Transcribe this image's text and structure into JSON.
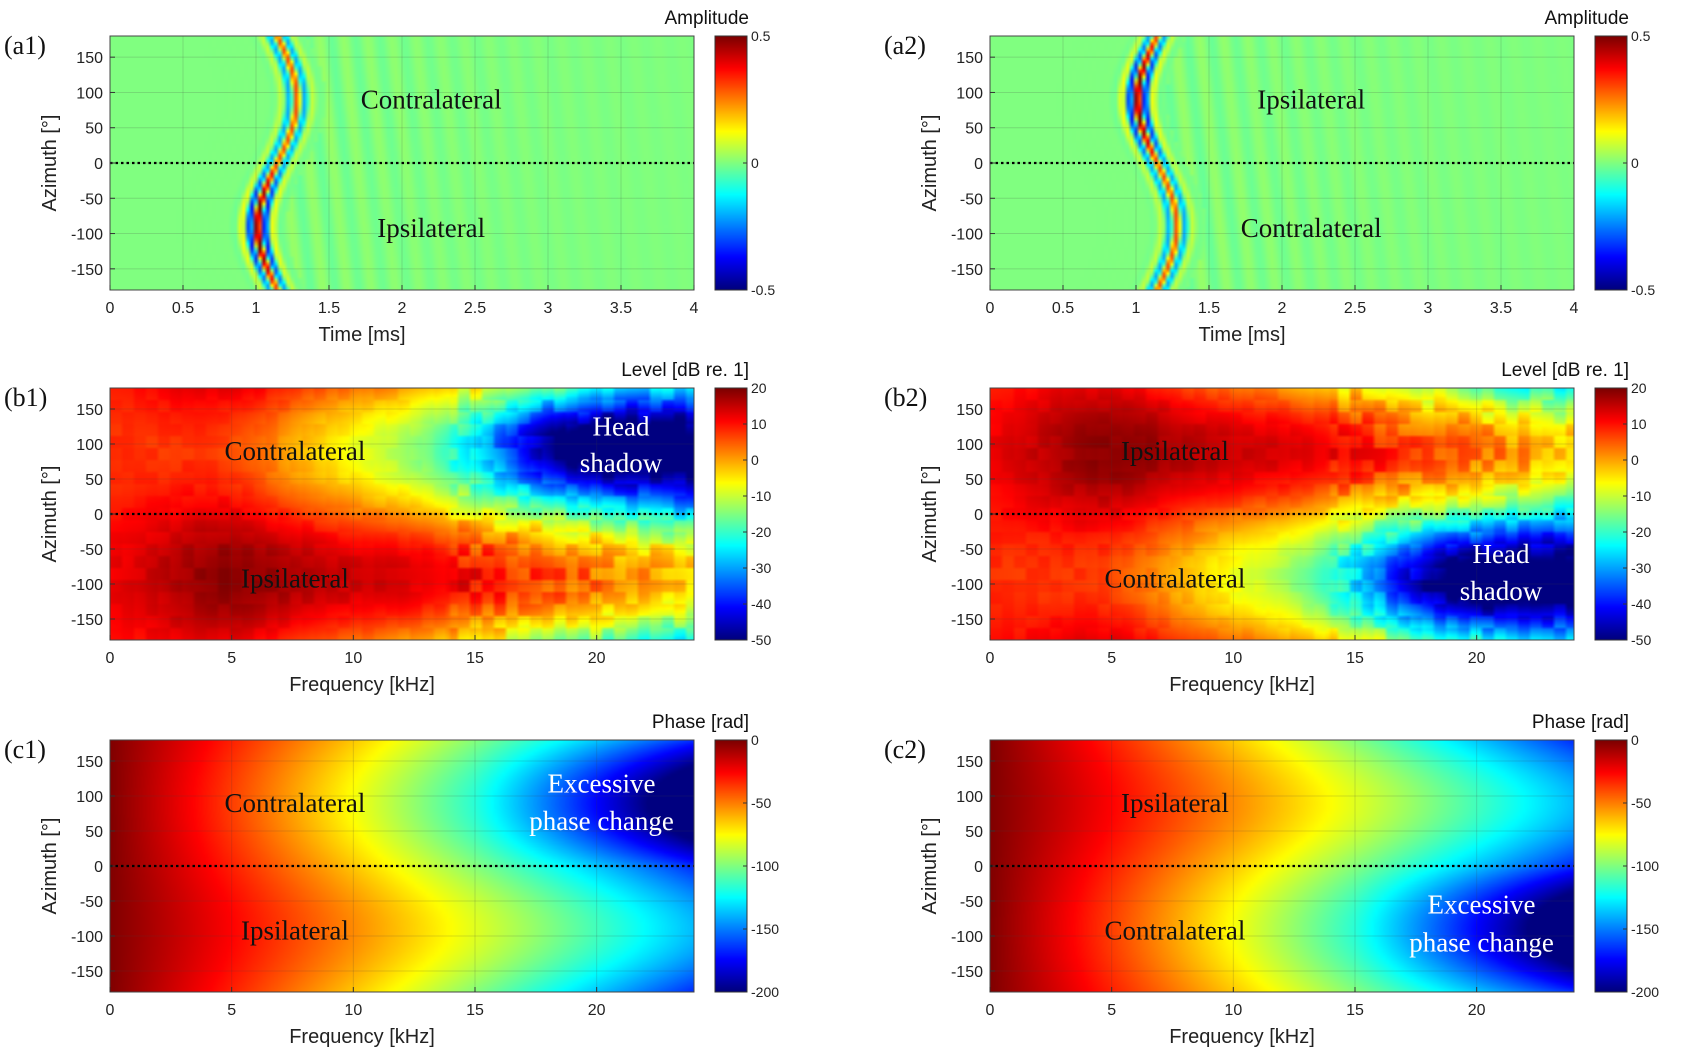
{
  "figure": {
    "description_free": true
  },
  "chart_data": [
    {
      "id": "a1",
      "type": "heatmap",
      "panel_label": "(a1)",
      "xlabel": "Time [ms]",
      "ylabel": "Azimuth [°]",
      "xlim": [
        0,
        4
      ],
      "ylim": [
        -180,
        180
      ],
      "xticks": [
        "0",
        "0.5",
        "1",
        "1.5",
        "2",
        "2.5",
        "3",
        "3.5",
        "4"
      ],
      "yticks": [
        "150",
        "100",
        "50",
        "0",
        "-50",
        "-100",
        "-150"
      ],
      "colorbar": {
        "title": "Amplitude",
        "range": [
          -0.5,
          0.5
        ],
        "ticks": [
          "0.5",
          "0",
          "-0.5"
        ],
        "colormap": "jet"
      },
      "field": "impulse",
      "peak_azimuth": -90,
      "annotations": [
        {
          "text": "Contralateral",
          "x": 2.2,
          "y": 90,
          "color": "black"
        },
        {
          "text": "Ipsilateral",
          "x": 2.2,
          "y": -92,
          "color": "black"
        }
      ],
      "zero_line": 0
    },
    {
      "id": "a2",
      "type": "heatmap",
      "panel_label": "(a2)",
      "xlabel": "Time [ms]",
      "ylabel": "Azimuth [°]",
      "xlim": [
        0,
        4
      ],
      "ylim": [
        -180,
        180
      ],
      "xticks": [
        "0",
        "0.5",
        "1",
        "1.5",
        "2",
        "2.5",
        "3",
        "3.5",
        "4"
      ],
      "yticks": [
        "150",
        "100",
        "50",
        "0",
        "-50",
        "-100",
        "-150"
      ],
      "colorbar": {
        "title": "Amplitude",
        "range": [
          -0.5,
          0.5
        ],
        "ticks": [
          "0.5",
          "0",
          "-0.5"
        ],
        "colormap": "jet"
      },
      "field": "impulse",
      "peak_azimuth": 90,
      "annotations": [
        {
          "text": "Ipsilateral",
          "x": 2.2,
          "y": 90,
          "color": "black"
        },
        {
          "text": "Contralateral",
          "x": 2.2,
          "y": -92,
          "color": "black"
        }
      ],
      "zero_line": 0
    },
    {
      "id": "b1",
      "type": "heatmap",
      "panel_label": "(b1)",
      "xlabel": "Frequency [kHz]",
      "ylabel": "Azimuth [°]",
      "xlim": [
        0,
        24
      ],
      "ylim": [
        -180,
        180
      ],
      "xticks": [
        "0",
        "5",
        "10",
        "15",
        "20"
      ],
      "xtick_values": [
        0,
        5,
        10,
        15,
        20
      ],
      "yticks": [
        "150",
        "100",
        "50",
        "0",
        "-50",
        "-100",
        "-150"
      ],
      "colorbar": {
        "title": "Level [dB re. 1]",
        "range": [
          -50,
          20
        ],
        "ticks": [
          "20",
          "10",
          "0",
          "-10",
          "-20",
          "-30",
          "-40",
          "-50"
        ],
        "colormap": "jet"
      },
      "field": "level",
      "peak_azimuth": -90,
      "annotations": [
        {
          "text": "Contralateral",
          "x": 7.6,
          "y": 90,
          "color": "black"
        },
        {
          "text": "Ipsilateral",
          "x": 7.6,
          "y": -92,
          "color": "black"
        },
        {
          "text": "Head",
          "x": 21,
          "y": 125,
          "color": "white"
        },
        {
          "text": "shadow",
          "x": 21,
          "y": 73,
          "color": "white"
        }
      ],
      "zero_line": 0
    },
    {
      "id": "b2",
      "type": "heatmap",
      "panel_label": "(b2)",
      "xlabel": "Frequency [kHz]",
      "ylabel": "Azimuth [°]",
      "xlim": [
        0,
        24
      ],
      "ylim": [
        -180,
        180
      ],
      "xticks": [
        "0",
        "5",
        "10",
        "15",
        "20"
      ],
      "xtick_values": [
        0,
        5,
        10,
        15,
        20
      ],
      "yticks": [
        "150",
        "100",
        "50",
        "0",
        "-50",
        "-100",
        "-150"
      ],
      "colorbar": {
        "title": "Level [dB re. 1]",
        "range": [
          -50,
          20
        ],
        "ticks": [
          "20",
          "10",
          "0",
          "-10",
          "-20",
          "-30",
          "-40",
          "-50"
        ],
        "colormap": "jet"
      },
      "field": "level",
      "peak_azimuth": 90,
      "annotations": [
        {
          "text": "Ipsilateral",
          "x": 7.6,
          "y": 90,
          "color": "black"
        },
        {
          "text": "Contralateral",
          "x": 7.6,
          "y": -92,
          "color": "black"
        },
        {
          "text": "Head",
          "x": 21,
          "y": -57,
          "color": "white"
        },
        {
          "text": "shadow",
          "x": 21,
          "y": -110,
          "color": "white"
        }
      ],
      "zero_line": 0
    },
    {
      "id": "c1",
      "type": "heatmap",
      "panel_label": "(c1)",
      "xlabel": "Frequency [kHz]",
      "ylabel": "Azimuth [°]",
      "xlim": [
        0,
        24
      ],
      "ylim": [
        -180,
        180
      ],
      "xticks": [
        "0",
        "5",
        "10",
        "15",
        "20"
      ],
      "xtick_values": [
        0,
        5,
        10,
        15,
        20
      ],
      "yticks": [
        "150",
        "100",
        "50",
        "0",
        "-50",
        "-100",
        "-150"
      ],
      "colorbar": {
        "title": "Phase [rad]",
        "range": [
          -200,
          0
        ],
        "ticks": [
          "0",
          "-50",
          "-100",
          "-150",
          "-200"
        ],
        "colormap": "jet"
      },
      "field": "phase",
      "peak_azimuth": -90,
      "annotations": [
        {
          "text": "Contralateral",
          "x": 7.6,
          "y": 90,
          "color": "black"
        },
        {
          "text": "Ipsilateral",
          "x": 7.6,
          "y": -92,
          "color": "black"
        },
        {
          "text": "Excessive",
          "x": 20.2,
          "y": 118,
          "color": "white"
        },
        {
          "text": "phase change",
          "x": 20.2,
          "y": 64,
          "color": "white"
        }
      ],
      "zero_line": 0
    },
    {
      "id": "c2",
      "type": "heatmap",
      "panel_label": "(c2)",
      "xlabel": "Frequency [kHz]",
      "ylabel": "Azimuth [°]",
      "xlim": [
        0,
        24
      ],
      "ylim": [
        -180,
        180
      ],
      "xticks": [
        "0",
        "5",
        "10",
        "15",
        "20"
      ],
      "xtick_values": [
        0,
        5,
        10,
        15,
        20
      ],
      "yticks": [
        "150",
        "100",
        "50",
        "0",
        "-50",
        "-100",
        "-150"
      ],
      "colorbar": {
        "title": "Phase [rad]",
        "range": [
          -200,
          0
        ],
        "ticks": [
          "0",
          "-50",
          "-100",
          "-150",
          "-200"
        ],
        "colormap": "jet"
      },
      "field": "phase",
      "peak_azimuth": 90,
      "annotations": [
        {
          "text": "Ipsilateral",
          "x": 7.6,
          "y": 90,
          "color": "black"
        },
        {
          "text": "Contralateral",
          "x": 7.6,
          "y": -92,
          "color": "black"
        },
        {
          "text": "Excessive",
          "x": 20.2,
          "y": -55,
          "color": "white"
        },
        {
          "text": "phase change",
          "x": 20.2,
          "y": -109,
          "color": "white"
        }
      ],
      "zero_line": 0
    }
  ]
}
